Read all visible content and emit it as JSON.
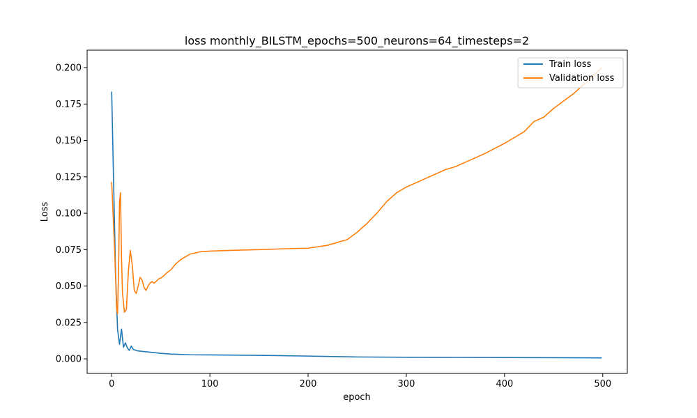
{
  "chart_data": {
    "type": "line",
    "title": "loss monthly_BILSTM_epochs=500_neurons=64_timesteps=2",
    "xlabel": "epoch",
    "ylabel": "Loss",
    "xlim": [
      -25,
      525
    ],
    "ylim": [
      -0.01,
      0.212
    ],
    "xticks": [
      0,
      100,
      200,
      300,
      400,
      500
    ],
    "xtick_labels": [
      "0",
      "100",
      "200",
      "300",
      "400",
      "500"
    ],
    "yticks": [
      0.0,
      0.025,
      0.05,
      0.075,
      0.1,
      0.125,
      0.15,
      0.175,
      0.2
    ],
    "ytick_labels": [
      "0.000",
      "0.025",
      "0.050",
      "0.075",
      "0.100",
      "0.125",
      "0.150",
      "0.175",
      "0.200"
    ],
    "grid": false,
    "legend": "top-right",
    "series": [
      {
        "name": "Train loss",
        "color": "#1f77b4",
        "x": [
          0,
          2,
          4,
          6,
          8,
          10,
          12,
          14,
          16,
          18,
          20,
          22,
          24,
          26,
          30,
          40,
          50,
          60,
          80,
          100,
          150,
          200,
          250,
          300,
          350,
          400,
          450,
          499
        ],
        "y": [
          0.1835,
          0.12,
          0.058,
          0.02,
          0.01,
          0.0205,
          0.008,
          0.011,
          0.0075,
          0.0058,
          0.0088,
          0.0065,
          0.006,
          0.0055,
          0.0052,
          0.0045,
          0.0038,
          0.0033,
          0.0028,
          0.0027,
          0.0024,
          0.0019,
          0.0013,
          0.0011,
          0.001,
          0.0009,
          0.0008,
          0.0007
        ]
      },
      {
        "name": "Validation loss",
        "color": "#ff7f0e",
        "x": [
          0,
          3,
          5,
          6,
          7,
          8,
          9,
          10,
          11,
          13,
          15,
          17,
          19,
          21,
          23,
          25,
          27,
          29,
          31,
          33,
          35,
          37,
          39,
          41,
          43,
          45,
          48,
          50,
          53,
          56,
          60,
          65,
          70,
          80,
          90,
          100,
          120,
          150,
          180,
          200,
          220,
          240,
          250,
          260,
          270,
          280,
          290,
          300,
          320,
          340,
          350,
          360,
          370,
          380,
          400,
          420,
          430,
          440,
          450,
          470,
          490,
          499
        ],
        "y": [
          0.1215,
          0.075,
          0.035,
          0.031,
          0.06,
          0.108,
          0.114,
          0.07,
          0.045,
          0.032,
          0.034,
          0.06,
          0.0745,
          0.064,
          0.047,
          0.045,
          0.05,
          0.056,
          0.054,
          0.049,
          0.047,
          0.05,
          0.052,
          0.053,
          0.052,
          0.053,
          0.055,
          0.0555,
          0.057,
          0.059,
          0.061,
          0.065,
          0.068,
          0.072,
          0.0735,
          0.074,
          0.0745,
          0.075,
          0.0757,
          0.076,
          0.078,
          0.082,
          0.087,
          0.093,
          0.1,
          0.108,
          0.114,
          0.118,
          0.124,
          0.13,
          0.132,
          0.135,
          0.138,
          0.141,
          0.148,
          0.156,
          0.163,
          0.166,
          0.172,
          0.182,
          0.194,
          0.2
        ]
      }
    ]
  }
}
